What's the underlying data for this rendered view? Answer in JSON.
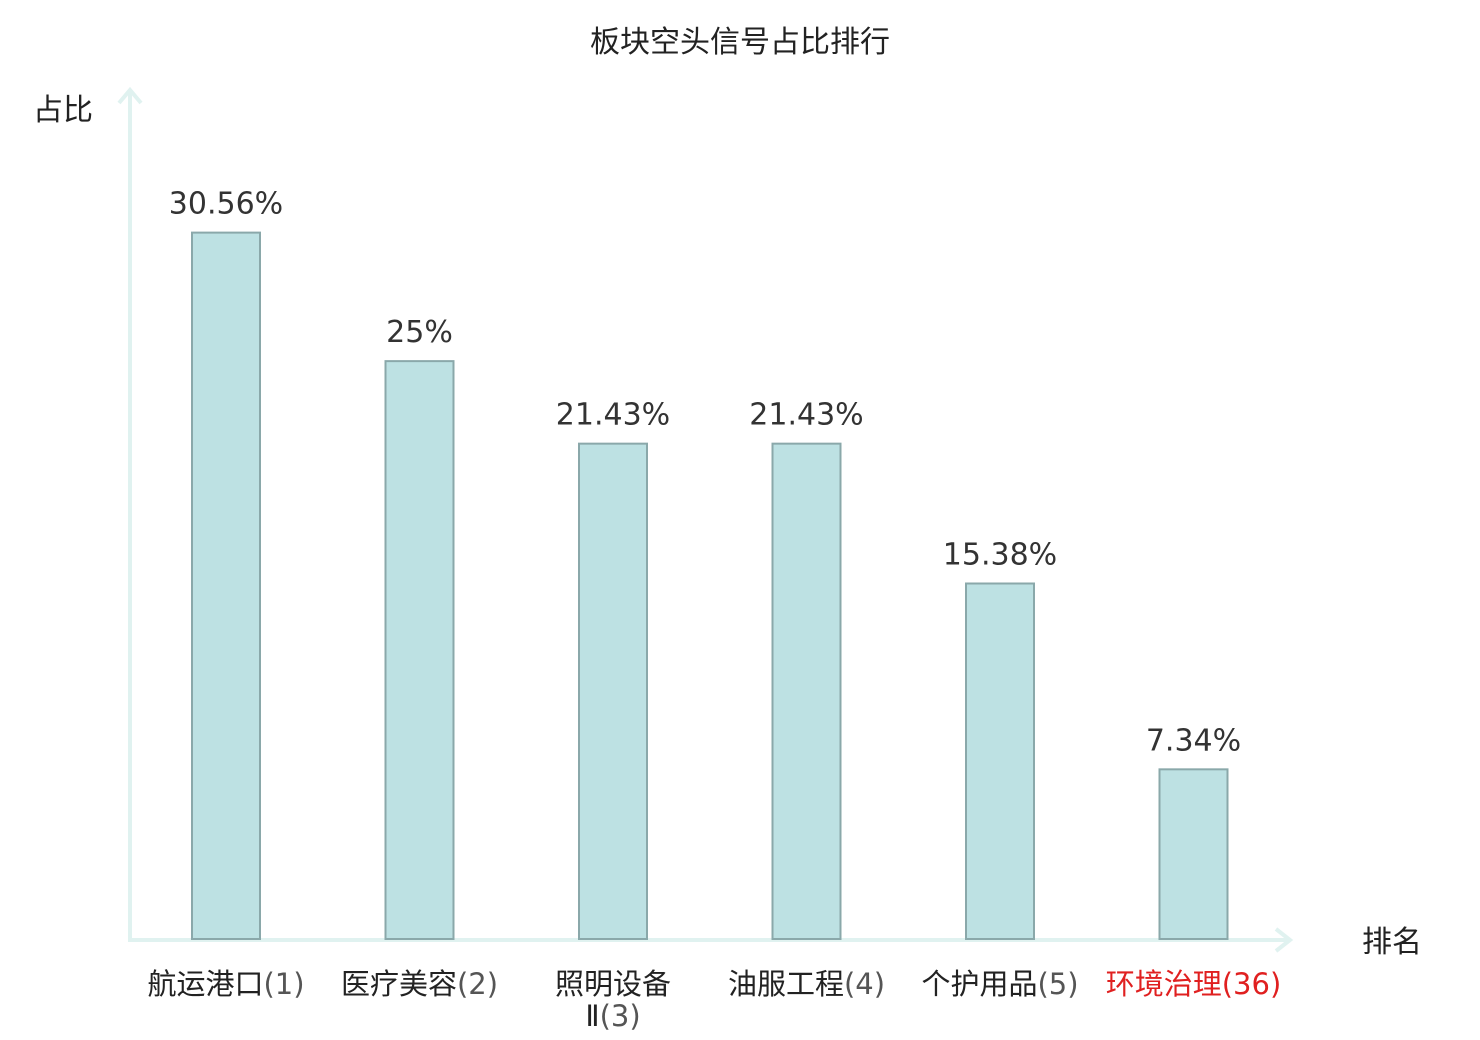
{
  "chart_data": {
    "type": "bar",
    "title": "板块空头信号占比排行",
    "ylabel": "占比",
    "xlabel": "排名",
    "categories": [
      "航运港口",
      "医疗美容",
      "照明设备Ⅱ",
      "油服工程",
      "个护用品",
      "环境治理"
    ],
    "ranks": [
      "(1)",
      "(2)",
      "(3)",
      "(4)",
      "(5)",
      "(36)"
    ],
    "values": [
      30.56,
      25,
      21.43,
      21.43,
      15.38,
      7.34
    ],
    "value_labels": [
      "30.56%",
      "25%",
      "21.43%",
      "21.43%",
      "15.38%",
      "7.34%"
    ],
    "highlight_index": 5,
    "ylim": [
      0,
      36.6
    ],
    "grid": false,
    "legend": "none"
  },
  "colors": {
    "bar_fill": "#bde1e3",
    "bar_stroke": "#8aa8aa",
    "axis": "#e0f2f0",
    "text": "#222222",
    "value_text": "#333333",
    "highlight": "#e02020"
  }
}
